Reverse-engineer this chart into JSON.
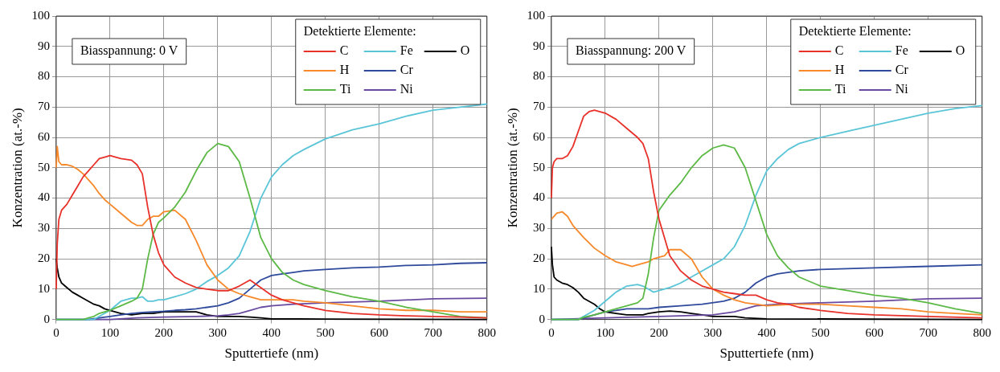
{
  "chart_data": [
    {
      "type": "line",
      "xlabel": "Sputtertiefe (nm)",
      "ylabel": "Konzentration (at.-%)",
      "legend_title": "Detektierte Elemente:",
      "legend": "top right",
      "grid": true,
      "marker": "none",
      "line_style": "solid",
      "annotations": [
        "Biasspannung: 0 V"
      ],
      "xlim": [
        0,
        800
      ],
      "xticks": [
        0,
        100,
        200,
        300,
        400,
        500,
        600,
        700,
        800
      ],
      "ylim": [
        0,
        100
      ],
      "yticks": [
        0,
        10,
        20,
        30,
        40,
        50,
        60,
        70,
        80,
        90,
        100
      ],
      "series": [
        {
          "name": "C",
          "color": "#e8312a",
          "x": [
            0,
            2,
            5,
            10,
            20,
            30,
            40,
            50,
            60,
            70,
            80,
            90,
            100,
            120,
            140,
            150,
            160,
            170,
            180,
            190,
            200,
            220,
            240,
            260,
            280,
            300,
            320,
            340,
            360,
            380,
            400,
            420,
            440,
            460,
            500,
            550,
            600,
            650,
            700,
            750,
            800
          ],
          "values": [
            10,
            25,
            33,
            36,
            38,
            41,
            44,
            47,
            49,
            51,
            53,
            53.5,
            54,
            53,
            52.5,
            51,
            48,
            37,
            28,
            22,
            18,
            14,
            12,
            10.5,
            10,
            9.5,
            9.5,
            11,
            13,
            10.5,
            8,
            6.5,
            5.5,
            4.5,
            3,
            2,
            1.5,
            1.2,
            1,
            0.8,
            0.5
          ]
        },
        {
          "name": "H",
          "color": "#f7892b",
          "x": [
            0,
            2,
            5,
            10,
            20,
            30,
            40,
            50,
            60,
            70,
            80,
            90,
            100,
            120,
            140,
            150,
            160,
            170,
            180,
            190,
            200,
            220,
            240,
            260,
            280,
            300,
            320,
            340,
            360,
            380,
            400,
            420,
            440,
            460,
            500,
            550,
            600,
            650,
            700,
            750,
            800
          ],
          "values": [
            50,
            57,
            52,
            51,
            51,
            50.5,
            49.5,
            48,
            46,
            44,
            41.5,
            39.5,
            38,
            35,
            32,
            31,
            31,
            33,
            34,
            34,
            35.5,
            36,
            33,
            26,
            18,
            13,
            10,
            8.5,
            7.5,
            6.5,
            6.5,
            6.5,
            6.5,
            6,
            5.5,
            4.5,
            3.5,
            3,
            3,
            2.5,
            2.5
          ]
        },
        {
          "name": "Ti",
          "color": "#5cb946",
          "x": [
            0,
            50,
            60,
            70,
            80,
            90,
            100,
            120,
            140,
            150,
            160,
            170,
            180,
            190,
            200,
            220,
            240,
            260,
            280,
            300,
            320,
            340,
            360,
            380,
            400,
            420,
            440,
            460,
            500,
            550,
            600,
            650,
            700,
            750,
            800
          ],
          "values": [
            0,
            0,
            0.5,
            1,
            2,
            2.5,
            3,
            4.5,
            6,
            7,
            10,
            20,
            28,
            32,
            33.5,
            37,
            42,
            49,
            55,
            58,
            57,
            52,
            40,
            27,
            20,
            15.5,
            13,
            11.5,
            9.5,
            7.5,
            6,
            4,
            2.5,
            1,
            0.5
          ]
        },
        {
          "name": "Fe",
          "color": "#5bc5d8",
          "x": [
            0,
            70,
            80,
            90,
            100,
            120,
            140,
            150,
            160,
            170,
            180,
            190,
            200,
            220,
            240,
            260,
            280,
            300,
            320,
            340,
            360,
            380,
            400,
            420,
            440,
            460,
            500,
            550,
            600,
            650,
            700,
            750,
            800
          ],
          "values": [
            0,
            0,
            1,
            2,
            3,
            6,
            7,
            7,
            7.5,
            6,
            6,
            6.5,
            6.5,
            7.5,
            8.5,
            10,
            12.5,
            14.5,
            17,
            21,
            29,
            40,
            47,
            51,
            54,
            56,
            59.5,
            62.5,
            64.5,
            67,
            69,
            70,
            71
          ]
        },
        {
          "name": "Cr",
          "color": "#2f4a9c",
          "x": [
            0,
            60,
            80,
            100,
            120,
            140,
            160,
            180,
            200,
            220,
            240,
            260,
            280,
            300,
            320,
            340,
            360,
            380,
            400,
            420,
            440,
            460,
            500,
            550,
            600,
            650,
            700,
            750,
            800
          ],
          "values": [
            0,
            0,
            0.5,
            1,
            1.5,
            2,
            2.3,
            2.5,
            2.7,
            3,
            3.2,
            3.5,
            4,
            4.5,
            5.5,
            7,
            10,
            13,
            14.5,
            15,
            15.5,
            16,
            16.5,
            17,
            17.3,
            17.8,
            18,
            18.5,
            18.7
          ]
        },
        {
          "name": "Ni",
          "color": "#6a4aa0",
          "x": [
            0,
            100,
            150,
            200,
            260,
            300,
            320,
            340,
            360,
            380,
            400,
            440,
            500,
            600,
            700,
            800
          ],
          "values": [
            0,
            0,
            0.5,
            0.8,
            1,
            1.2,
            1.5,
            2,
            3,
            4,
            4.5,
            5,
            5.5,
            6,
            6.8,
            7
          ]
        },
        {
          "name": "O",
          "color": "#000000",
          "x": [
            0,
            2,
            5,
            10,
            20,
            30,
            40,
            50,
            60,
            70,
            80,
            90,
            100,
            120,
            140,
            160,
            180,
            200,
            220,
            240,
            260,
            280,
            300,
            320,
            340,
            360,
            380,
            400,
            450,
            500,
            800
          ],
          "values": [
            20,
            17,
            14,
            12,
            10.5,
            9,
            8,
            7,
            6,
            5,
            4.5,
            3.5,
            3,
            2,
            1.5,
            2,
            2,
            2.5,
            2.5,
            2.5,
            2.5,
            1.5,
            1,
            1,
            1,
            0.8,
            0.5,
            0.2,
            0.2,
            0.1,
            0
          ]
        }
      ]
    },
    {
      "type": "line",
      "xlabel": "Sputtertiefe (nm)",
      "ylabel": "Konzentration (at.-%)",
      "legend_title": "Detektierte Elemente:",
      "legend": "top right",
      "grid": true,
      "marker": "none",
      "line_style": "solid",
      "annotations": [
        "Biasspannung: 200 V"
      ],
      "xlim": [
        0,
        800
      ],
      "xticks": [
        0,
        100,
        200,
        300,
        400,
        500,
        600,
        700,
        800
      ],
      "ylim": [
        0,
        100
      ],
      "yticks": [
        0,
        10,
        20,
        30,
        40,
        50,
        60,
        70,
        80,
        90,
        100
      ],
      "series": [
        {
          "name": "C",
          "color": "#e8312a",
          "x": [
            0,
            2,
            5,
            10,
            20,
            30,
            40,
            50,
            60,
            70,
            80,
            100,
            120,
            140,
            160,
            170,
            180,
            190,
            200,
            210,
            220,
            240,
            260,
            280,
            300,
            320,
            340,
            360,
            380,
            400,
            420,
            440,
            460,
            500,
            550,
            600,
            700,
            800
          ],
          "values": [
            40,
            50,
            52,
            53,
            53,
            54,
            57,
            62,
            67,
            68.5,
            69,
            68,
            66,
            63,
            60,
            58,
            53,
            42,
            33,
            27,
            21,
            16,
            13,
            11,
            10,
            9,
            8.5,
            8,
            8,
            6.5,
            5.5,
            5,
            4,
            3,
            2,
            1.5,
            1,
            0.5
          ]
        },
        {
          "name": "H",
          "color": "#f7892b",
          "x": [
            0,
            5,
            10,
            20,
            30,
            40,
            60,
            80,
            100,
            120,
            140,
            150,
            160,
            180,
            190,
            200,
            210,
            220,
            240,
            260,
            280,
            300,
            320,
            340,
            360,
            380,
            400,
            450,
            500,
            550,
            600,
            650,
            700,
            750,
            800
          ],
          "values": [
            33,
            34,
            35,
            35.5,
            34,
            31,
            27,
            23.5,
            21,
            19,
            18,
            17.5,
            18,
            19,
            20,
            20.5,
            21,
            23,
            23,
            20,
            14,
            10,
            8,
            6.5,
            5.5,
            5,
            4.5,
            5,
            5,
            4.5,
            4,
            3.5,
            2.5,
            2,
            1.5
          ]
        },
        {
          "name": "Ti",
          "color": "#5cb946",
          "x": [
            0,
            50,
            60,
            80,
            100,
            120,
            140,
            160,
            170,
            180,
            190,
            200,
            220,
            240,
            260,
            280,
            300,
            320,
            340,
            360,
            380,
            400,
            420,
            440,
            460,
            500,
            550,
            600,
            650,
            700,
            750,
            800
          ],
          "values": [
            0,
            0,
            0.7,
            1.5,
            2.5,
            3.5,
            4.5,
            5.5,
            7,
            15,
            27,
            36,
            41,
            45,
            50,
            54,
            56.5,
            57.5,
            56.5,
            50,
            39,
            28,
            21,
            17,
            14,
            11,
            9.5,
            8,
            7,
            5.5,
            3.5,
            2
          ]
        },
        {
          "name": "Fe",
          "color": "#5bc5d8",
          "x": [
            0,
            50,
            80,
            100,
            120,
            140,
            160,
            170,
            180,
            190,
            200,
            220,
            240,
            260,
            280,
            300,
            320,
            340,
            360,
            380,
            400,
            420,
            440,
            460,
            500,
            550,
            600,
            650,
            700,
            750,
            800
          ],
          "values": [
            0,
            0,
            3,
            6,
            9,
            11,
            11.5,
            11,
            10,
            9,
            9.5,
            10.5,
            12,
            14,
            16,
            18,
            20,
            24,
            31,
            41,
            49,
            53,
            56,
            58,
            60,
            62,
            64,
            66,
            68,
            69.5,
            70.5
          ]
        },
        {
          "name": "Cr",
          "color": "#2f4a9c",
          "x": [
            0,
            50,
            80,
            100,
            120,
            140,
            160,
            180,
            200,
            240,
            280,
            320,
            340,
            360,
            380,
            400,
            420,
            460,
            500,
            600,
            700,
            800
          ],
          "values": [
            0,
            0,
            1.5,
            2.5,
            3,
            3.5,
            3.5,
            3.5,
            4,
            4.5,
            5,
            6,
            7,
            9,
            12,
            14,
            15,
            16,
            16.5,
            17,
            17.5,
            18
          ]
        },
        {
          "name": "Ni",
          "color": "#6a4aa0",
          "x": [
            0,
            100,
            200,
            300,
            340,
            360,
            380,
            420,
            500,
            600,
            700,
            800
          ],
          "values": [
            0,
            0.5,
            1,
            1.5,
            2.5,
            3.5,
            4.5,
            5,
            5.5,
            6,
            6.8,
            7
          ]
        },
        {
          "name": "O",
          "color": "#000000",
          "x": [
            0,
            2,
            5,
            10,
            20,
            30,
            40,
            50,
            60,
            70,
            80,
            90,
            100,
            120,
            140,
            160,
            170,
            180,
            200,
            220,
            240,
            260,
            280,
            300,
            340,
            360,
            400,
            800
          ],
          "values": [
            24,
            18,
            14,
            13,
            12,
            11.5,
            10.5,
            9,
            7,
            6,
            5,
            3.5,
            2.5,
            2,
            1.5,
            1.5,
            1.5,
            2,
            2.5,
            2.8,
            2.5,
            2,
            1.5,
            1,
            1,
            0.5,
            0.2,
            0
          ]
        }
      ]
    }
  ]
}
